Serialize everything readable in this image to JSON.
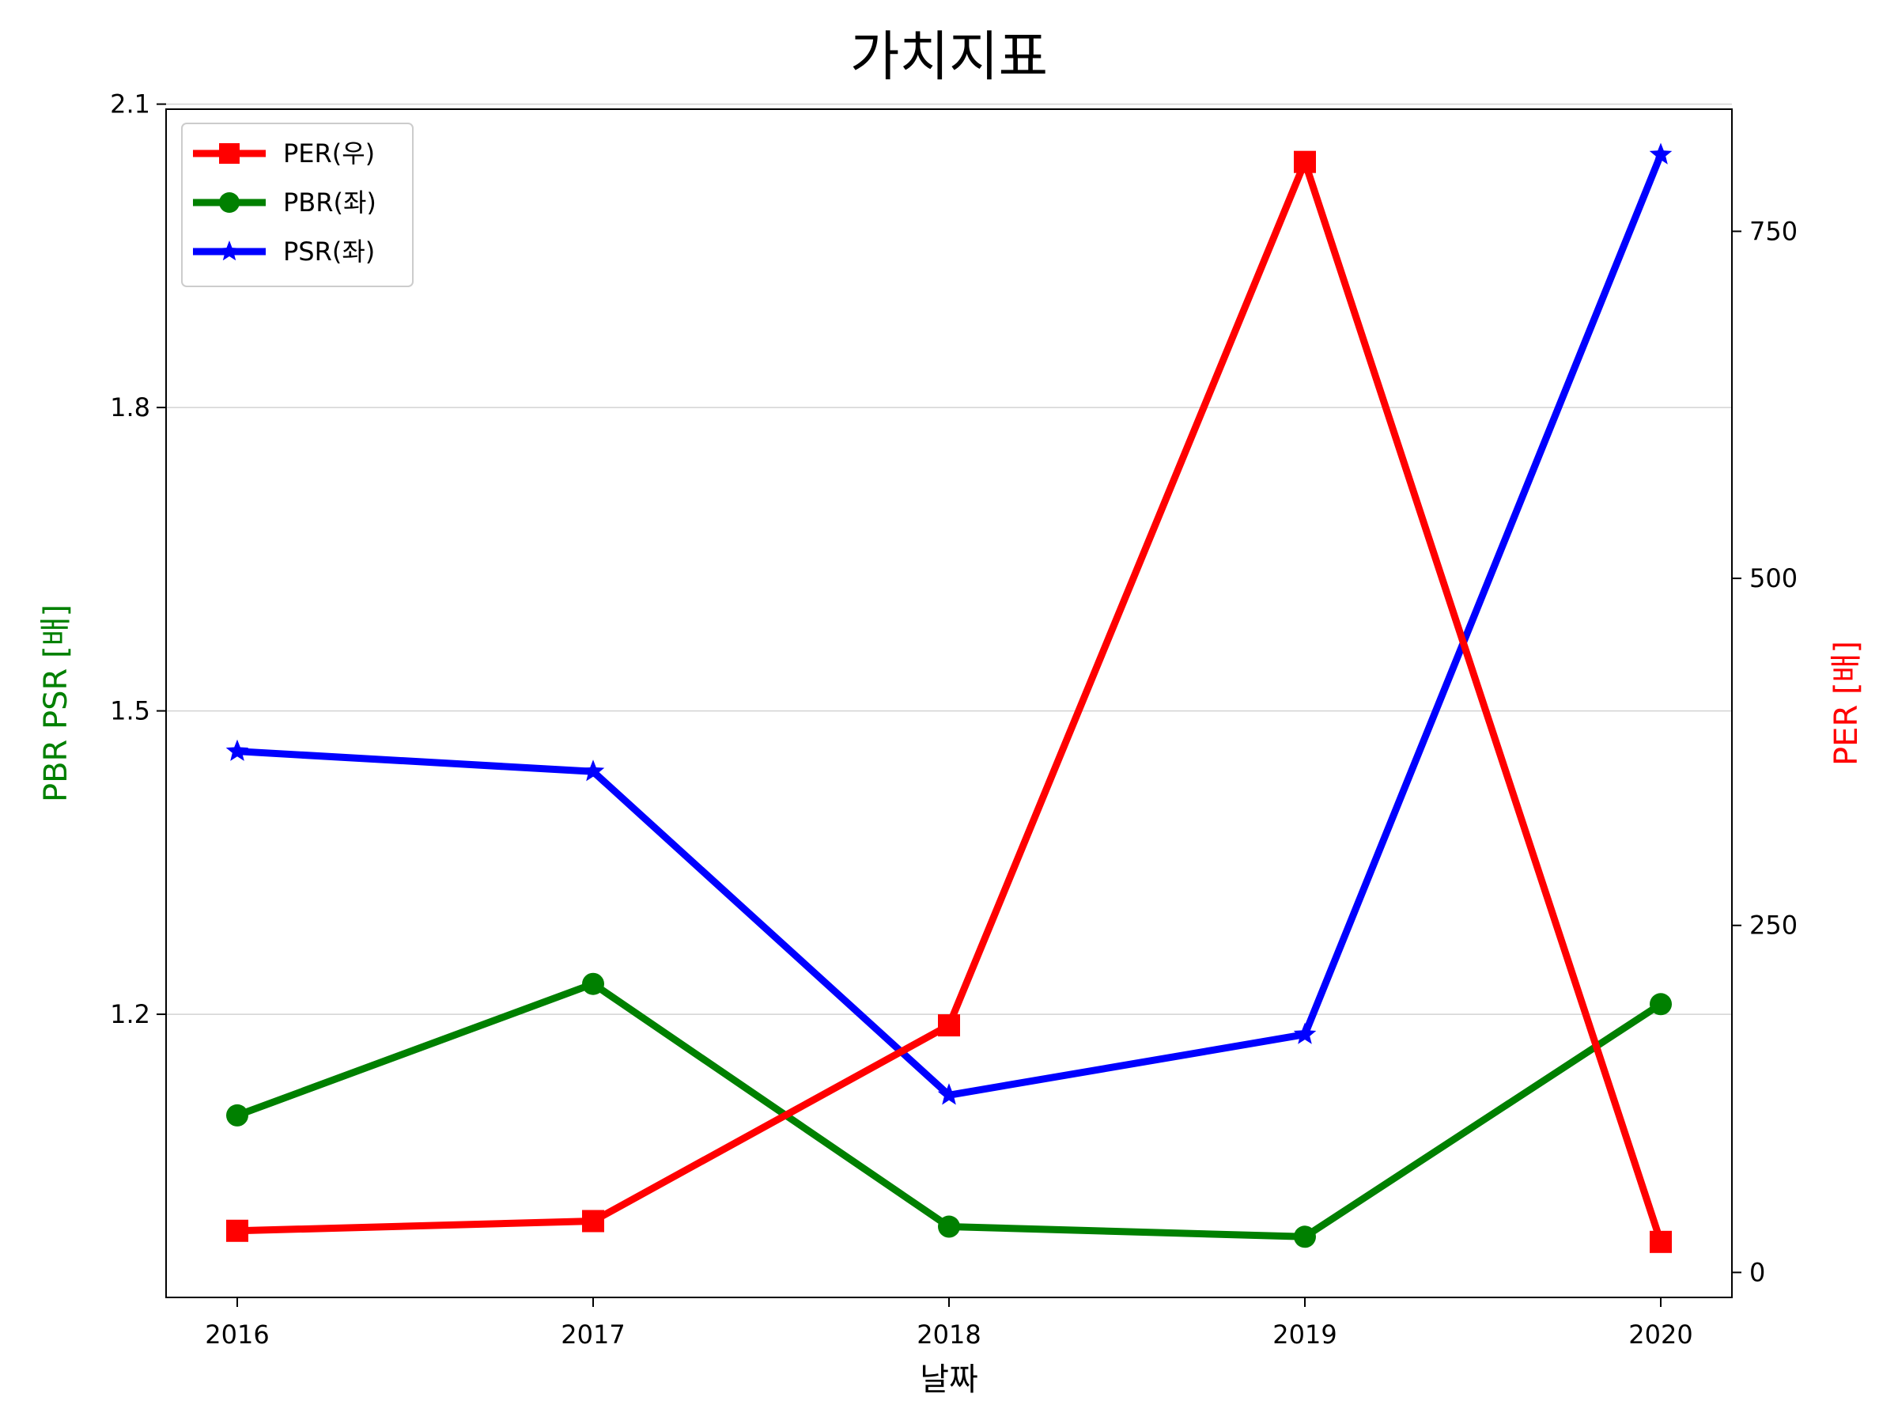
{
  "chart_data": {
    "type": "line",
    "title": "가치지표",
    "xlabel": "날짜",
    "ylabel_left": "PBR PSR [배]",
    "ylabel_right": "PER [배]",
    "ylabel_left_color": "#008000",
    "ylabel_right_color": "#ff0000",
    "categories": [
      "2016",
      "2017",
      "2018",
      "2019",
      "2020"
    ],
    "left_axis": {
      "ylim": [
        0.92,
        2.095
      ],
      "ticks": [
        1.2,
        1.5,
        1.8,
        2.1
      ],
      "tick_labels": [
        "1.2",
        "1.5",
        "1.8",
        "2.1"
      ]
    },
    "right_axis": {
      "ylim": [
        -18,
        838
      ],
      "ticks": [
        0,
        250,
        500,
        750
      ],
      "tick_labels": [
        "0",
        "250",
        "500",
        "750"
      ]
    },
    "grid": "horizontal-left-axis",
    "legend_position": "top-left",
    "series": [
      {
        "name": "PER(우)",
        "axis": "right",
        "color": "#ff0000",
        "marker": "square",
        "values": [
          30,
          37,
          178,
          800,
          22
        ]
      },
      {
        "name": "PBR(좌)",
        "axis": "left",
        "color": "#008000",
        "marker": "circle",
        "values": [
          1.1,
          1.23,
          0.99,
          0.98,
          1.21
        ]
      },
      {
        "name": "PSR(좌)",
        "axis": "left",
        "color": "#0000ff",
        "marker": "star",
        "values": [
          1.46,
          1.44,
          1.12,
          1.18,
          2.05
        ]
      }
    ]
  }
}
